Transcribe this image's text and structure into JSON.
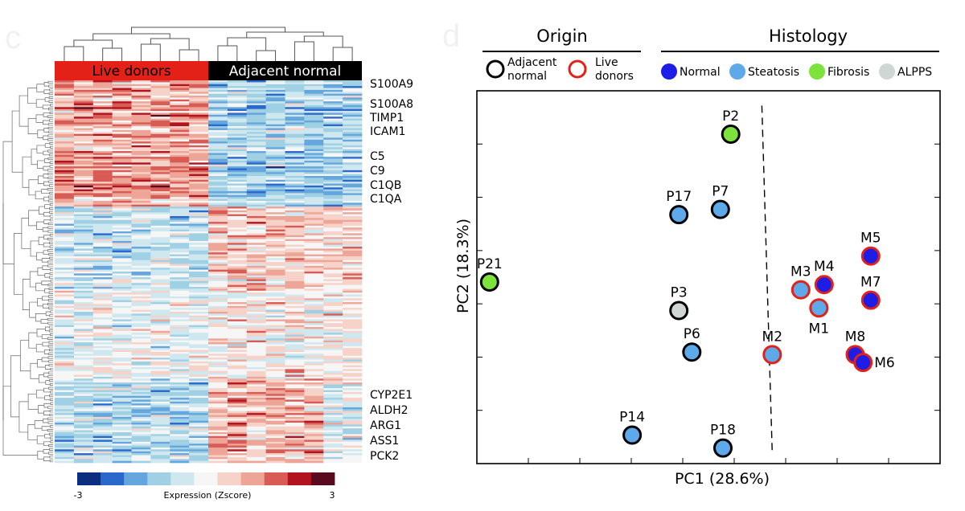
{
  "panels": {
    "left_letter": "c",
    "right_letter": "d"
  },
  "palette": {
    "zscore": [
      "#0b2f7e",
      "#2a68cc",
      "#64a6dd",
      "#9fd0e4",
      "#cfe8ef",
      "#f6f6f6",
      "#f6d2c8",
      "#eda597",
      "#d85b55",
      "#b2141f",
      "#5a0a1e"
    ],
    "live_red": "#e32119",
    "adjacent_black": "#000000",
    "normal": "#1d1de6",
    "steatosis": "#5ea9ea",
    "fibrosis": "#7ee23c",
    "alpps": "#cfd6d3"
  },
  "chart_data": [
    {
      "type": "heatmap",
      "title": "",
      "column_groups": [
        {
          "label": "Live donors",
          "n_columns": 8,
          "color": "#e32119",
          "text_color": "#000000"
        },
        {
          "label": "Adjacent normal",
          "n_columns": 8,
          "color": "#000000",
          "text_color": "#ffffff"
        }
      ],
      "n_rows": 200,
      "row_labels": [
        "S100A9",
        "S100A8",
        "TIMP1",
        "ICAM1",
        "C5",
        "C9",
        "C1QB",
        "C1QA",
        "CYP2E1",
        "ALDH2",
        "ARG1",
        "ASS1",
        "PCK2"
      ],
      "colorbar": {
        "label": "Expression (Zscore)",
        "min": -3,
        "max": 3,
        "min_label": "-3",
        "max_label": "3"
      },
      "dendrograms": [
        "columns",
        "rows"
      ]
    },
    {
      "type": "scatter",
      "xlabel": "PC1 (28.6%)",
      "ylabel": "PC2 (18.3%)",
      "xlim": [
        0,
        8
      ],
      "ylim": [
        0,
        7
      ],
      "divider": {
        "x1": 5.2,
        "y1": 6.9,
        "x2": 5.4,
        "y2": 0.2,
        "style": "dashed"
      },
      "legend": {
        "origin_title": "Origin",
        "histology_title": "Histology",
        "origin_items": [
          {
            "key": "adjacent",
            "label": [
              "Adjacent",
              "normal"
            ]
          },
          {
            "key": "live",
            "label": [
              "Live",
              "donors"
            ]
          }
        ],
        "histology_items": [
          {
            "key": "normal",
            "label": "Normal"
          },
          {
            "key": "steatosis",
            "label": "Steatosis"
          },
          {
            "key": "fibrosis",
            "label": "Fibrosis"
          },
          {
            "key": "alpps",
            "label": "ALPPS"
          }
        ]
      },
      "points": [
        {
          "label": "P2",
          "x": 4.6,
          "y": 6.35,
          "origin": "adjacent",
          "histology": "fibrosis",
          "label_pos": "above"
        },
        {
          "label": "P17",
          "x": 3.6,
          "y": 4.8,
          "origin": "adjacent",
          "histology": "steatosis",
          "label_pos": "above"
        },
        {
          "label": "P7",
          "x": 4.4,
          "y": 4.9,
          "origin": "adjacent",
          "histology": "steatosis",
          "label_pos": "above"
        },
        {
          "label": "P21",
          "x": -0.05,
          "y": 3.5,
          "origin": "adjacent",
          "histology": "fibrosis",
          "label_pos": "above"
        },
        {
          "label": "P3",
          "x": 3.6,
          "y": 2.95,
          "origin": "adjacent",
          "histology": "alpps",
          "label_pos": "above"
        },
        {
          "label": "P6",
          "x": 3.85,
          "y": 2.15,
          "origin": "adjacent",
          "histology": "steatosis",
          "label_pos": "above"
        },
        {
          "label": "P14",
          "x": 2.7,
          "y": 0.55,
          "origin": "adjacent",
          "histology": "steatosis",
          "label_pos": "above"
        },
        {
          "label": "P18",
          "x": 4.45,
          "y": 0.3,
          "origin": "adjacent",
          "histology": "steatosis",
          "label_pos": "above"
        },
        {
          "label": "M3",
          "x": 5.95,
          "y": 3.35,
          "origin": "live",
          "histology": "steatosis",
          "label_pos": "above"
        },
        {
          "label": "M4",
          "x": 6.4,
          "y": 3.45,
          "origin": "live",
          "histology": "normal",
          "label_pos": "above"
        },
        {
          "label": "M1",
          "x": 6.3,
          "y": 3.0,
          "origin": "live",
          "histology": "steatosis",
          "label_pos": "below"
        },
        {
          "label": "M5",
          "x": 7.3,
          "y": 4.0,
          "origin": "live",
          "histology": "normal",
          "label_pos": "above"
        },
        {
          "label": "M7",
          "x": 7.3,
          "y": 3.15,
          "origin": "live",
          "histology": "normal",
          "label_pos": "above"
        },
        {
          "label": "M2",
          "x": 5.4,
          "y": 2.1,
          "origin": "live",
          "histology": "steatosis",
          "label_pos": "above"
        },
        {
          "label": "M8",
          "x": 7.0,
          "y": 2.1,
          "origin": "live",
          "histology": "normal",
          "label_pos": "above"
        },
        {
          "label": "M6",
          "x": 7.15,
          "y": 1.95,
          "origin": "live",
          "histology": "normal",
          "label_pos": "right"
        }
      ]
    }
  ]
}
